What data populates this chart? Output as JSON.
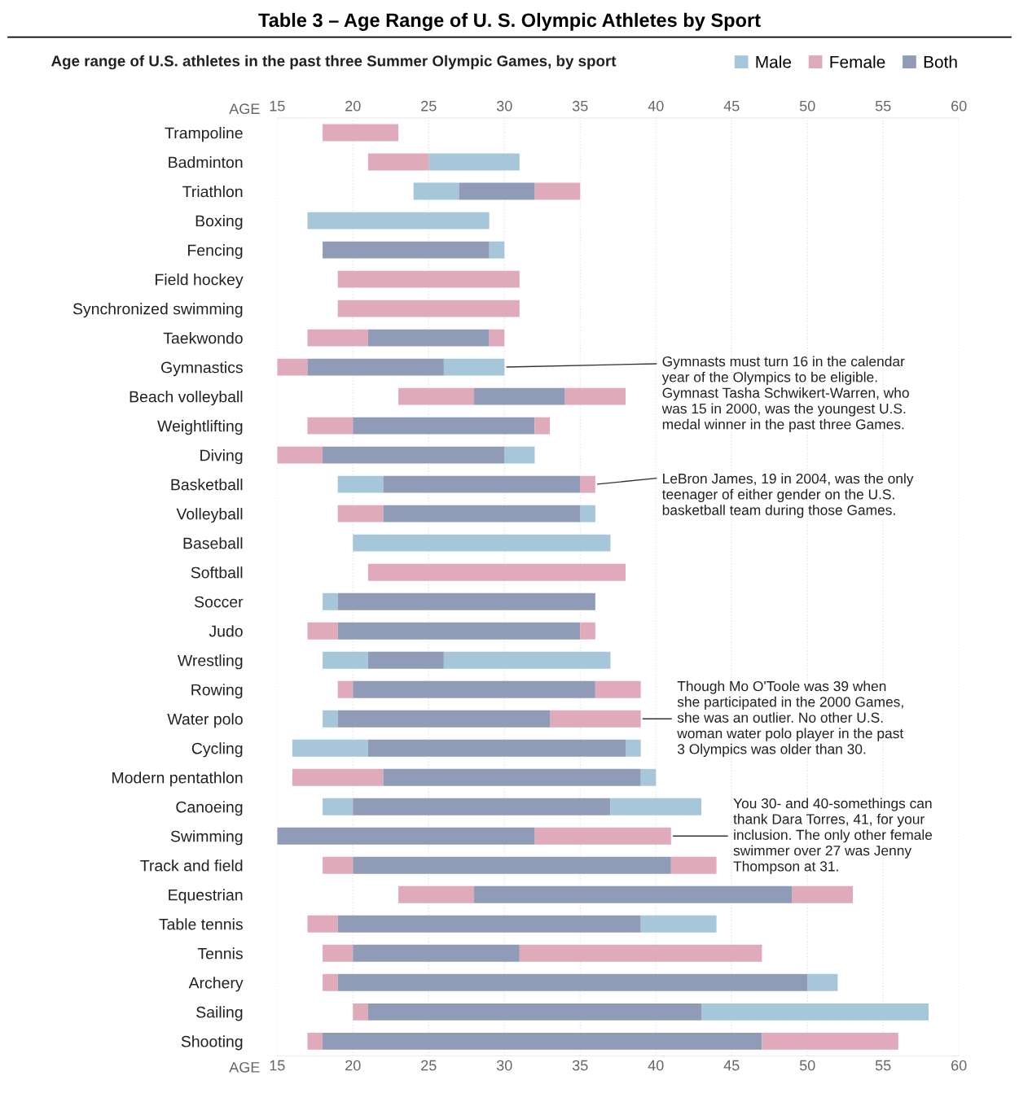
{
  "chart_data": {
    "type": "bar",
    "orientation": "horizontal",
    "title": "Table 3 – Age Range of U. S. Olympic Athletes by Sport",
    "subtitle": "Age range of U.S. athletes in the past three Summer Olympic Games, by sport",
    "xlabel": "AGE",
    "x2label": "AGE",
    "categories": [
      "Trampoline",
      "Badminton",
      "Triathlon",
      "Boxing",
      "Fencing",
      "Field hockey",
      "Synchronized swimming",
      "Taekwondo",
      "Gymnastics",
      "Beach volleyball",
      "Weightlifting",
      "Diving",
      "Basketball",
      "Volleyball",
      "Baseball",
      "Softball",
      "Soccer",
      "Judo",
      "Wrestling",
      "Rowing",
      "Water polo",
      "Cycling",
      "Modern pentathlon",
      "Canoeing",
      "Swimming",
      "Track and field",
      "Equestrian",
      "Table tennis",
      "Tennis",
      "Archery",
      "Sailing",
      "Shooting"
    ],
    "series": [
      {
        "name": "Male",
        "color": "#a5c7d9",
        "base": [
          null,
          25,
          24,
          17,
          29,
          null,
          null,
          null,
          26,
          null,
          null,
          30,
          19,
          35,
          20,
          null,
          18,
          null,
          18,
          null,
          18,
          16,
          39,
          18,
          null,
          null,
          null,
          39,
          null,
          50,
          43,
          null
        ],
        "values": [
          null,
          6,
          3,
          12,
          1,
          null,
          null,
          null,
          4,
          null,
          null,
          2,
          3,
          1,
          17,
          null,
          1,
          null,
          3,
          null,
          1,
          5,
          1,
          2,
          null,
          null,
          null,
          5,
          null,
          2,
          15,
          null
        ]
      },
      {
        "name": "Female",
        "color": "#dfabba",
        "base": [
          18,
          21,
          32,
          null,
          null,
          19,
          19,
          17,
          15,
          23,
          17,
          15,
          35,
          19,
          null,
          21,
          null,
          17,
          null,
          19,
          33,
          null,
          16,
          null,
          32,
          18,
          23,
          17,
          18,
          18,
          20,
          17
        ],
        "values": [
          5,
          4,
          3,
          null,
          null,
          12,
          12,
          4,
          2,
          5,
          3,
          3,
          1,
          3,
          null,
          17,
          null,
          2,
          null,
          1,
          6,
          null,
          6,
          null,
          9,
          2,
          5,
          2,
          2,
          1,
          1,
          1
        ]
      },
      {
        "name": "Both",
        "color": "#909bb7",
        "base": [
          null,
          null,
          27,
          null,
          18,
          null,
          null,
          21,
          17,
          28,
          20,
          18,
          22,
          22,
          null,
          null,
          19,
          19,
          21,
          20,
          19,
          21,
          22,
          20,
          15,
          20,
          28,
          19,
          20,
          19,
          21,
          18
        ],
        "values": [
          null,
          null,
          5,
          null,
          11,
          null,
          null,
          8,
          9,
          6,
          12,
          12,
          13,
          13,
          null,
          null,
          17,
          16,
          5,
          16,
          14,
          17,
          17,
          17,
          17,
          21,
          21,
          20,
          11,
          31,
          22,
          29
        ]
      },
      {
        "color": "#a5c7d9",
        "base": [
          null,
          null,
          null,
          null,
          null,
          null,
          null,
          null,
          null,
          null,
          null,
          null,
          null,
          null,
          null,
          null,
          null,
          null,
          26,
          null,
          null,
          38,
          null,
          37,
          null,
          null,
          null,
          null,
          null,
          null,
          null,
          null
        ],
        "values": [
          null,
          null,
          null,
          null,
          null,
          null,
          null,
          null,
          null,
          null,
          null,
          null,
          null,
          null,
          null,
          null,
          null,
          null,
          11,
          null,
          null,
          1,
          null,
          6,
          null,
          null,
          null,
          null,
          null,
          null,
          null,
          null
        ]
      },
      {
        "color": "#dfabba",
        "base": [
          null,
          null,
          null,
          null,
          null,
          null,
          null,
          29,
          null,
          34,
          32,
          null,
          null,
          null,
          null,
          null,
          null,
          35,
          null,
          36,
          null,
          null,
          null,
          null,
          null,
          41,
          49,
          null,
          31,
          null,
          null,
          47
        ],
        "values": [
          null,
          null,
          null,
          null,
          null,
          null,
          null,
          1,
          null,
          4,
          1,
          null,
          null,
          null,
          null,
          null,
          null,
          1,
          null,
          3,
          null,
          null,
          null,
          null,
          null,
          3,
          4,
          null,
          16,
          null,
          null,
          9
        ]
      }
    ],
    "xlim": [
      15,
      60
    ],
    "xticks": [
      15,
      20,
      25,
      30,
      35,
      40,
      45,
      50,
      55,
      60
    ],
    "x2lim": [
      15,
      60
    ],
    "x2ticks": [
      15,
      20,
      25,
      30,
      35,
      40,
      45,
      50,
      55,
      60
    ],
    "grid": "x",
    "legend": "top right",
    "annotations": [
      {
        "text": "Gymnasts must turn 16 in the calendar\nyear of the Olympics to be eligible.\nGymnast Tasha Schwikert-Warren, who\nwas 15 in 2000, was the youngest U.S.\nmedal winner in the past three Games.",
        "x": 30,
        "y": "Gymnastics"
      },
      {
        "text": "LeBron James, 19 in 2004, was the only\nteenager of either gender on the U.S.\nbasketball team during those Games.",
        "x": 36,
        "y": "Basketball"
      },
      {
        "text": "Though Mo O'Toole was 39 when\nshe participated in the 2000 Games,\nshe was an outlier. No other U.S.\nwoman water polo player in the past\n3 Olympics was older than 30.",
        "x": 39,
        "y": "Water polo"
      },
      {
        "text": "You 30- and 40-somethings can\nthank Dara Torres, 41, for your\ninclusion. The only other female\nswimmer over 27 was Jenny\nThompson at 31.",
        "x": 41,
        "y": "Swimming"
      }
    ]
  }
}
